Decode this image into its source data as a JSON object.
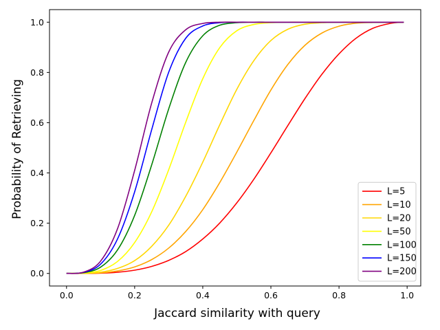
{
  "chart_data": {
    "type": "line",
    "title": "",
    "xlabel": "Jaccard similarity with query",
    "ylabel": "Probability of Retrieving",
    "xlim": [
      -0.05,
      1.04
    ],
    "ylim": [
      -0.05,
      1.05
    ],
    "xticks": [
      0.0,
      0.2,
      0.4,
      0.6,
      0.8,
      1.0
    ],
    "xtick_labels": [
      "0.0",
      "0.2",
      "0.4",
      "0.6",
      "0.8",
      "1.0"
    ],
    "yticks": [
      0.0,
      0.2,
      0.4,
      0.6,
      0.8,
      1.0
    ],
    "ytick_labels": [
      "0.0",
      "0.2",
      "0.4",
      "0.6",
      "0.8",
      "1.0"
    ],
    "grid": false,
    "legend_position": "lower-right",
    "x": [
      0.0,
      0.05,
      0.1,
      0.15,
      0.2,
      0.25,
      0.3,
      0.35,
      0.4,
      0.45,
      0.5,
      0.55,
      0.6,
      0.65,
      0.7,
      0.75,
      0.8,
      0.85,
      0.9,
      0.95,
      0.99
    ],
    "series": [
      {
        "name": "L=5",
        "color": "#ff0000",
        "values": [
          0.0,
          0.0,
          0.001,
          0.005,
          0.013,
          0.028,
          0.052,
          0.087,
          0.137,
          0.201,
          0.281,
          0.375,
          0.48,
          0.589,
          0.696,
          0.793,
          0.874,
          0.936,
          0.976,
          0.995,
          1.0
        ]
      },
      {
        "name": "L=10",
        "color": "#ffa500",
        "values": [
          0.0,
          0.0,
          0.002,
          0.01,
          0.026,
          0.055,
          0.101,
          0.167,
          0.254,
          0.362,
          0.483,
          0.609,
          0.73,
          0.832,
          0.908,
          0.957,
          0.984,
          0.996,
          0.999,
          1.0,
          1.0
        ]
      },
      {
        "name": "L=20",
        "color": "#ffd700",
        "values": [
          0.0,
          0.001,
          0.005,
          0.02,
          0.051,
          0.108,
          0.192,
          0.307,
          0.443,
          0.592,
          0.733,
          0.847,
          0.927,
          0.972,
          0.992,
          0.998,
          1.0,
          1.0,
          1.0,
          1.0,
          1.0
        ]
      },
      {
        "name": "L=50",
        "color": "#ffff00",
        "values": [
          0.0,
          0.002,
          0.012,
          0.048,
          0.123,
          0.245,
          0.413,
          0.602,
          0.775,
          0.899,
          0.966,
          0.991,
          0.998,
          1.0,
          1.0,
          1.0,
          1.0,
          1.0,
          1.0,
          1.0,
          1.0
        ]
      },
      {
        "name": "L=100",
        "color": "#008000",
        "values": [
          0.0,
          0.003,
          0.025,
          0.094,
          0.231,
          0.432,
          0.655,
          0.84,
          0.946,
          0.988,
          0.998,
          1.0,
          1.0,
          1.0,
          1.0,
          1.0,
          1.0,
          1.0,
          1.0,
          1.0,
          1.0
        ]
      },
      {
        "name": "L=150",
        "color": "#0000ff",
        "values": [
          0.0,
          0.004,
          0.037,
          0.138,
          0.325,
          0.572,
          0.801,
          0.936,
          0.985,
          0.998,
          1.0,
          1.0,
          1.0,
          1.0,
          1.0,
          1.0,
          1.0,
          1.0,
          1.0,
          1.0,
          1.0
        ]
      },
      {
        "name": "L=200",
        "color": "#800080",
        "values": [
          0.0,
          0.005,
          0.049,
          0.179,
          0.41,
          0.678,
          0.881,
          0.97,
          0.995,
          1.0,
          1.0,
          1.0,
          1.0,
          1.0,
          1.0,
          1.0,
          1.0,
          1.0,
          1.0,
          1.0,
          1.0
        ]
      }
    ]
  }
}
